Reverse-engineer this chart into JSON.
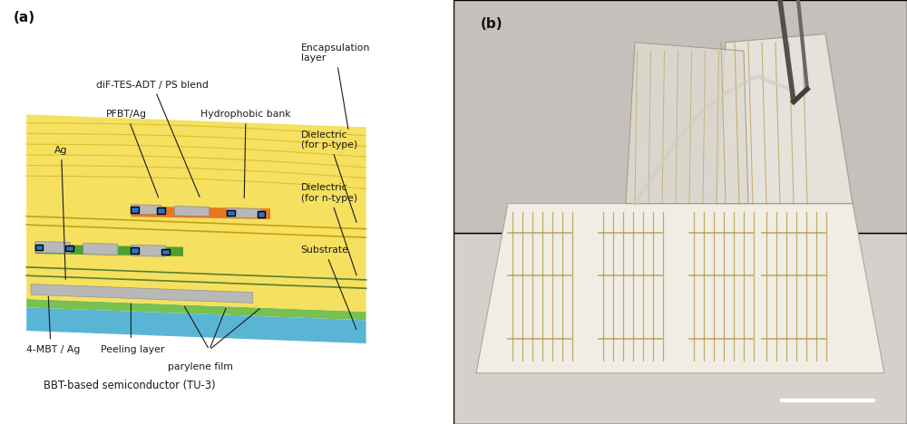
{
  "figure_width": 10.0,
  "figure_height": 4.68,
  "dpi": 100,
  "panel_a_label": "(a)",
  "panel_b_label": "(b)",
  "background_color": "#ffffff",
  "layer_colors": {
    "substrate_blue": "#5ab5d5",
    "peeling_green": "#78c050",
    "yellow_main": "#f5e060",
    "yellow_dark": "#e8c830",
    "yellow_light": "#faf0a0",
    "dielectric_n_line": "#5a8030",
    "dielectric_p_line": "#c8a010",
    "ag_electrode": "#b8b8b8",
    "orange_semi": "#e87820",
    "green_semi": "#50a030",
    "blue_contact": "#3070c0",
    "encap_wave": "#d8b820"
  },
  "labels": {
    "ag": "Ag",
    "pfbt": "PFBT/Ag",
    "dif": "diF-TES-ADT / PS blend",
    "hydrophobic": "Hydrophobic bank",
    "encapsulation": "Encapsulation\nlayer",
    "dielectric_p": "Dielectric\n(for p-type)",
    "dielectric_n": "Dielectric\n(for n-type)",
    "substrate": "Substrate",
    "mbt": "4-MBT / Ag",
    "peeling": "Peeling layer",
    "parylene": "parylene film",
    "bbt": "BBT-based semiconductor (TU-3)"
  },
  "annot_fs": 7.8,
  "panel_label_fs": 11,
  "photo_bg": "#c0bcb8",
  "photo_table": "#d8d4d0",
  "photo_board": "#f0ede8",
  "photo_trace_gold": "#b09030",
  "photo_trace_green": "#507040"
}
